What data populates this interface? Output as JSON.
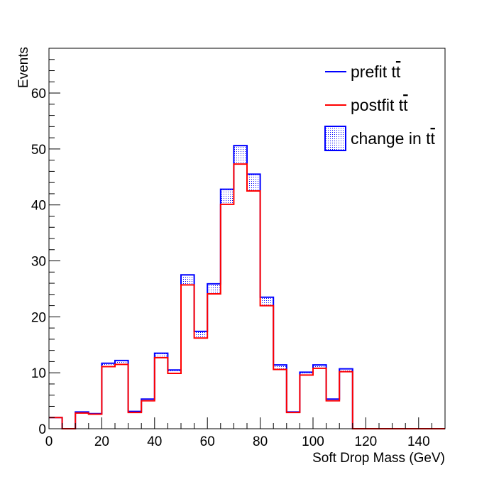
{
  "chart_data": {
    "type": "histogram",
    "title": "",
    "xlabel": "Soft Drop Mass (GeV)",
    "ylabel": "Events",
    "xlim": [
      0,
      150
    ],
    "ylim": [
      0,
      68
    ],
    "x_ticks": [
      0,
      20,
      40,
      60,
      80,
      100,
      120,
      140
    ],
    "y_ticks": [
      0,
      10,
      20,
      30,
      40,
      50,
      60
    ],
    "bin_edges": [
      0,
      5,
      10,
      15,
      20,
      25,
      30,
      35,
      40,
      45,
      50,
      55,
      60,
      65,
      70,
      75,
      80,
      85,
      90,
      95,
      100,
      105,
      110,
      115,
      120,
      125,
      130,
      135,
      140,
      145,
      150
    ],
    "series": [
      {
        "name": "prefit t t̄",
        "color": "#0000ff",
        "values": [
          2.0,
          0,
          3.0,
          2.7,
          11.7,
          12.2,
          3.1,
          5.3,
          13.5,
          10.5,
          27.5,
          17.4,
          25.9,
          42.8,
          50.6,
          45.5,
          23.5,
          11.4,
          3.0,
          10.1,
          11.4,
          5.3,
          10.7,
          0,
          0,
          0,
          0,
          0,
          0,
          0
        ]
      },
      {
        "name": "postfit t t̄",
        "color": "#ff0000",
        "values": [
          2.0,
          0,
          2.8,
          2.6,
          11.1,
          11.5,
          2.9,
          5.0,
          12.7,
          9.9,
          25.7,
          16.2,
          24.1,
          40.1,
          47.3,
          42.5,
          22.0,
          10.6,
          2.9,
          9.6,
          10.8,
          5.0,
          10.2,
          0,
          0,
          0,
          0,
          0,
          0,
          0
        ]
      }
    ],
    "band": {
      "name": "change in t t̄",
      "color": "#0000ff",
      "pattern": "dotted"
    },
    "grid": false,
    "legend": "top-right"
  },
  "legend_items": [
    {
      "label": "prefit t",
      "color": "#0000ff"
    },
    {
      "label": "postfit t",
      "color": "#ff0000"
    },
    {
      "label": "change in t",
      "color": "#0000ff"
    }
  ]
}
